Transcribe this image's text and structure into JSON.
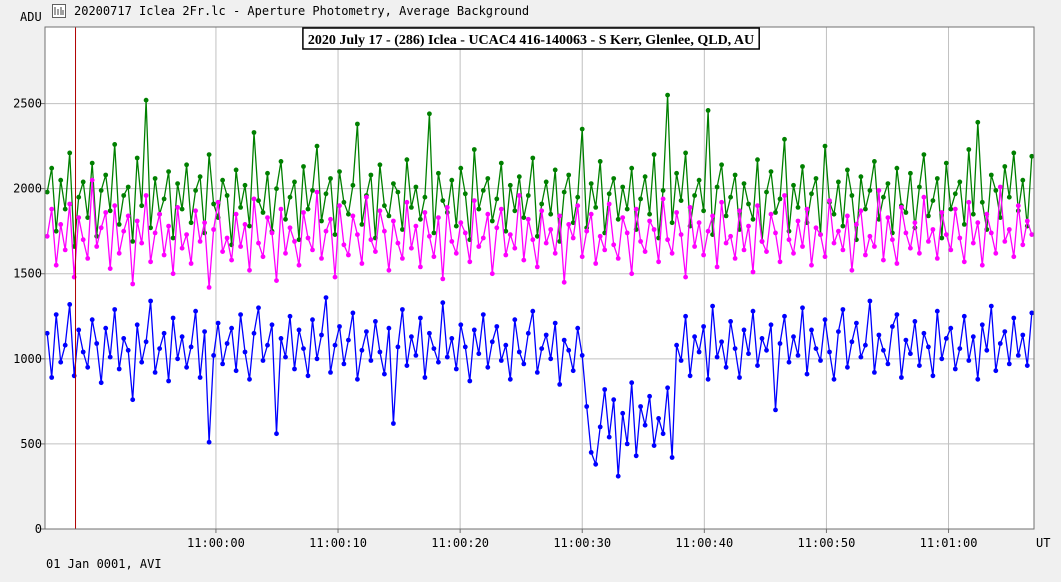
{
  "window": {
    "title": "20200717 Iclea 2Fr.lc - Aperture Photometry, Average Background",
    "icon": "app-icon"
  },
  "footer": {
    "date_mode": "01 Jan 0001, AVI"
  },
  "chart_data": {
    "type": "line",
    "title": "2020 July 17 - (286) Iclea - UCAC4 416-140063 - S Kerr, Glenlee, QLD, AU",
    "ylabel": "ADU",
    "xlabel": "UT",
    "ylim": [
      0,
      2950
    ],
    "yticks": [
      0,
      500,
      1000,
      1500,
      2000,
      2500
    ],
    "xlim": [
      -12.0,
      28.5
    ],
    "xticks": [
      {
        "value": -5,
        "label": "11:00:00"
      },
      {
        "value": 0,
        "label": "11:00:10"
      },
      {
        "value": 5,
        "label": "11:00:20"
      },
      {
        "value": 10,
        "label": "11:00:30"
      },
      {
        "value": 15,
        "label": "11:00:40"
      },
      {
        "value": 20,
        "label": "11:00:50"
      },
      {
        "value": 25,
        "label": "11:01:00"
      }
    ],
    "grid": true,
    "cursor_x": -10.75,
    "series": [
      {
        "color": "#008000",
        "values": [
          1980,
          2120,
          1750,
          2050,
          1880,
          2210,
          1660,
          1950,
          2040,
          1830,
          2150,
          1720,
          1990,
          2080,
          1870,
          2260,
          1790,
          1960,
          2010,
          1690,
          2180,
          1900,
          2520,
          1770,
          2060,
          1850,
          1940,
          2100,
          1710,
          2030,
          1880,
          2140,
          1800,
          1990,
          2070,
          1740,
          2200,
          1910,
          1830,
          2050,
          1960,
          1670,
          2110,
          1890,
          2020,
          1780,
          2330,
          1930,
          1860,
          2090,
          1750,
          2000,
          2160,
          1820,
          1950,
          2040,
          1700,
          2130,
          1880,
          1990,
          2250,
          1810,
          1970,
          2060,
          1730,
          2100,
          1920,
          1850,
          2020,
          2380,
          1790,
          1960,
          2080,
          1710,
          2140,
          1900,
          1840,
          2030,
          1980,
          1760,
          2170,
          1890,
          2010,
          1820,
          1950,
          2440,
          1740,
          2090,
          1930,
          1860,
          2050,
          1780,
          2120,
          1970,
          1700,
          2230,
          1880,
          1990,
          2060,
          1810,
          1940,
          2150,
          1750,
          2020,
          1870,
          2070,
          1830,
          1960,
          2180,
          1720,
          1910,
          2040,
          1850,
          2110,
          1690,
          1980,
          2080,
          1800,
          1950,
          2350,
          1770,
          2030,
          1890,
          2160,
          1740,
          1970,
          2060,
          1820,
          2010,
          1880,
          2120,
          1760,
          1940,
          2070,
          1850,
          2200,
          1710,
          1990,
          2550,
          1800,
          2090,
          1930,
          2210,
          1780,
          1960,
          2050,
          1870,
          2460,
          1730,
          2010,
          2140,
          1840,
          1950,
          2080,
          1760,
          2030,
          1910,
          1820,
          2170,
          1690,
          1980,
          2100,
          1860,
          1940,
          2290,
          1750,
          2020,
          1890,
          2130,
          1800,
          1970,
          2060,
          1730,
          2250,
          1920,
          1850,
          2040,
          1780,
          2110,
          1960,
          1700,
          2070,
          1880,
          1990,
          2160,
          1820,
          1950,
          2030,
          1740,
          2120,
          1900,
          1860,
          2090,
          1770,
          2010,
          2200,
          1840,
          1930,
          2060,
          1710,
          2150,
          1880,
          1970,
          2040,
          1790,
          2230,
          1850,
          2390,
          1920,
          1760,
          2080,
          1990,
          1830,
          2130,
          1950,
          2210,
          1870,
          2050,
          1780,
          2190
        ]
      },
      {
        "color": "#ff00ff",
        "values": [
          1720,
          1880,
          1550,
          1790,
          1640,
          1910,
          1480,
          1830,
          1700,
          1590,
          2050,
          1660,
          1770,
          1860,
          1530,
          1900,
          1620,
          1750,
          1840,
          1440,
          1810,
          1680,
          1960,
          1570,
          1740,
          1850,
          1610,
          1780,
          1500,
          1890,
          1650,
          1730,
          1560,
          1870,
          1690,
          1800,
          1420,
          1760,
          1920,
          1630,
          1710,
          1580,
          1850,
          1660,
          1790,
          1520,
          1940,
          1680,
          1600,
          1830,
          1740,
          1460,
          1880,
          1620,
          1770,
          1690,
          1550,
          1860,
          1710,
          1640,
          1980,
          1590,
          1750,
          1820,
          1480,
          1900,
          1670,
          1610,
          1840,
          1730,
          1560,
          1950,
          1700,
          1630,
          1870,
          1750,
          1520,
          1810,
          1680,
          1590,
          1920,
          1650,
          1780,
          1540,
          1860,
          1720,
          1600,
          1830,
          1470,
          1890,
          1690,
          1620,
          1800,
          1740,
          1570,
          1930,
          1660,
          1710,
          1850,
          1500,
          1770,
          1880,
          1610,
          1730,
          1650,
          1960,
          1580,
          1820,
          1700,
          1540,
          1870,
          1680,
          1760,
          1620,
          1840,
          1450,
          1790,
          1710,
          1900,
          1600,
          1750,
          1850,
          1560,
          1720,
          1640,
          1910,
          1670,
          1590,
          1830,
          1740,
          1500,
          1880,
          1690,
          1630,
          1810,
          1760,
          1570,
          1940,
          1700,
          1620,
          1860,
          1730,
          1480,
          1890,
          1660,
          1800,
          1610,
          1750,
          1840,
          1540,
          1920,
          1680,
          1720,
          1590,
          1870,
          1640,
          1780,
          1510,
          1900,
          1690,
          1630,
          1850,
          1740,
          1570,
          1960,
          1700,
          1620,
          1810,
          1660,
          1880,
          1550,
          1770,
          1730,
          1600,
          1930,
          1680,
          1750,
          1640,
          1840,
          1520,
          1790,
          1870,
          1610,
          1720,
          1660,
          1990,
          1580,
          1830,
          1700,
          1560,
          1890,
          1740,
          1650,
          1800,
          1620,
          1950,
          1690,
          1760,
          1590,
          1860,
          1730,
          1640,
          1880,
          1710,
          1570,
          1920,
          1680,
          1800,
          1550,
          1850,
          1740,
          1620,
          2010,
          1690,
          1760,
          1600,
          1900,
          1670,
          1810,
          1730
        ]
      },
      {
        "color": "#0000ff",
        "values": [
          1150,
          890,
          1260,
          980,
          1080,
          1320,
          900,
          1170,
          1040,
          950,
          1230,
          1090,
          860,
          1180,
          1010,
          1290,
          940,
          1120,
          1050,
          760,
          1200,
          980,
          1100,
          1340,
          920,
          1060,
          1150,
          870,
          1240,
          1000,
          1130,
          950,
          1070,
          1280,
          890,
          1160,
          510,
          1020,
          1210,
          970,
          1090,
          1180,
          930,
          1260,
          1040,
          880,
          1150,
          1300,
          990,
          1080,
          1200,
          560,
          1120,
          1010,
          1250,
          940,
          1170,
          1060,
          900,
          1230,
          1000,
          1140,
          1360,
          920,
          1080,
          1190,
          970,
          1110,
          1270,
          880,
          1050,
          1160,
          990,
          1220,
          1040,
          910,
          1180,
          620,
          1070,
          1290,
          960,
          1130,
          1020,
          1240,
          890,
          1150,
          1060,
          980,
          1330,
          1010,
          1120,
          940,
          1200,
          1070,
          870,
          1170,
          1030,
          1260,
          950,
          1100,
          1190,
          990,
          1080,
          880,
          1230,
          1040,
          970,
          1150,
          1280,
          920,
          1060,
          1140,
          1000,
          1210,
          850,
          1110,
          1050,
          930,
          1180,
          1020,
          720,
          450,
          380,
          600,
          820,
          540,
          760,
          310,
          680,
          500,
          860,
          430,
          720,
          610,
          780,
          490,
          650,
          560,
          830,
          420,
          1080,
          990,
          1250,
          900,
          1130,
          1040,
          1190,
          880,
          1310,
          1010,
          1100,
          950,
          1220,
          1060,
          890,
          1170,
          1030,
          1280,
          960,
          1120,
          1050,
          1200,
          700,
          1090,
          1250,
          980,
          1130,
          1020,
          1300,
          910,
          1170,
          1060,
          990,
          1230,
          1040,
          880,
          1160,
          1290,
          950,
          1100,
          1210,
          1010,
          1080,
          1340,
          920,
          1140,
          1050,
          970,
          1190,
          1260,
          890,
          1110,
          1030,
          1220,
          960,
          1150,
          1070,
          900,
          1280,
          1000,
          1120,
          1180,
          940,
          1060,
          1250,
          990,
          1130,
          880,
          1200,
          1050,
          1310,
          930,
          1090,
          1160,
          970,
          1240,
          1020,
          1140,
          960,
          1270
        ]
      }
    ]
  }
}
